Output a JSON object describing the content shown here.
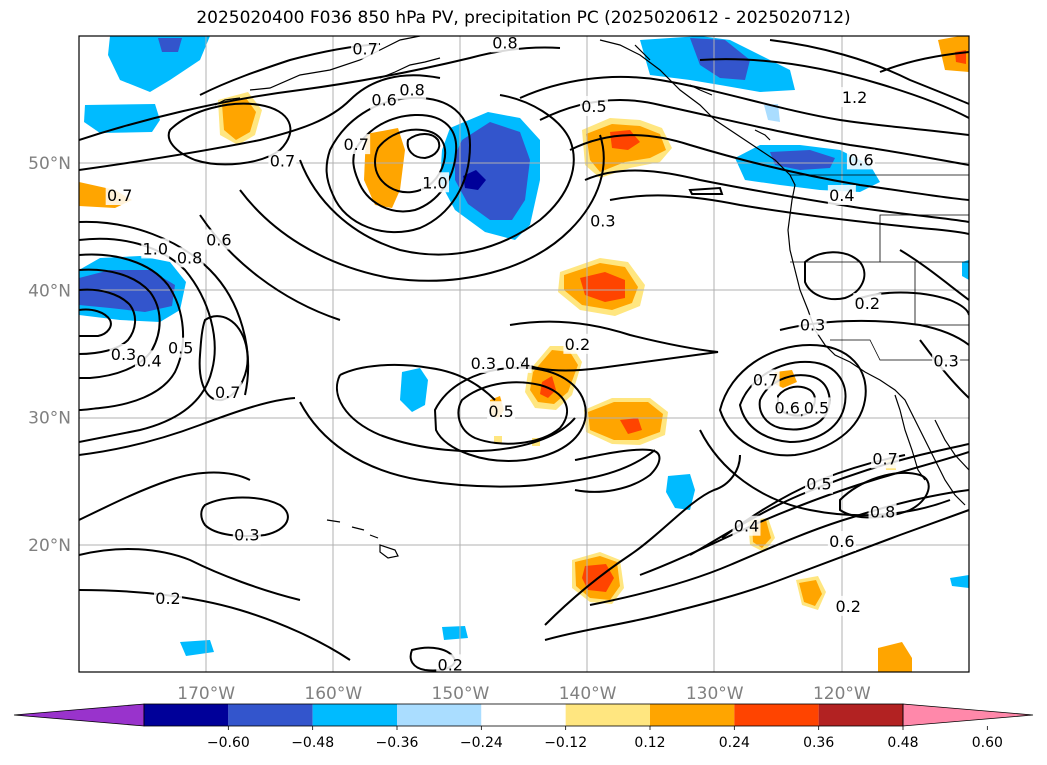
{
  "title": "2025020400 F036 850 hPa PV, precipitation PC (2025020612 - 2025020712)",
  "map": {
    "lon_range": [
      -180,
      -110
    ],
    "lat_range": [
      10,
      60
    ],
    "lon_ticks": [
      {
        "lon": -170,
        "label": "170°W"
      },
      {
        "lon": -160,
        "label": "160°W"
      },
      {
        "lon": -150,
        "label": "150°W"
      },
      {
        "lon": -140,
        "label": "140°W"
      },
      {
        "lon": -130,
        "label": "130°W"
      },
      {
        "lon": -120,
        "label": "120°W"
      }
    ],
    "lat_ticks": [
      {
        "lat": 20,
        "label": "20°N"
      },
      {
        "lat": 30,
        "label": "30°N"
      },
      {
        "lat": 40,
        "label": "40°N"
      },
      {
        "lat": 50,
        "label": "50°N"
      }
    ],
    "grid": true
  },
  "colorbar": {
    "colors": [
      "#9933cc",
      "#000099",
      "#3355cc",
      "#00bbff",
      "#aaddff",
      "#ffffff",
      "#ffe680",
      "#ffa500",
      "#ff4400",
      "#b22222",
      "#ff88aa"
    ],
    "ticks": [
      "−0.60",
      "−0.48",
      "−0.36",
      "−0.24",
      "−0.12",
      "0.12",
      "0.24",
      "0.36",
      "0.48",
      "0.60"
    ]
  },
  "contour_labels": [
    {
      "text": "0.8",
      "lon": -146.5,
      "lat": 59.5
    },
    {
      "text": "0.7",
      "lon": -157.5,
      "lat": 59.0
    },
    {
      "text": "0.6",
      "lon": -156.0,
      "lat": 55.0
    },
    {
      "text": "0.8",
      "lon": -153.8,
      "lat": 55.8
    },
    {
      "text": "0.7",
      "lon": -158.2,
      "lat": 51.5
    },
    {
      "text": "0.7",
      "lon": -164.0,
      "lat": 50.2
    },
    {
      "text": "1.0",
      "lon": -152.0,
      "lat": 48.5
    },
    {
      "text": "0.5",
      "lon": -139.5,
      "lat": 54.5
    },
    {
      "text": "0.3",
      "lon": -138.8,
      "lat": 45.5
    },
    {
      "text": "1.2",
      "lon": -119.0,
      "lat": 55.2
    },
    {
      "text": "0.6",
      "lon": -118.5,
      "lat": 50.3
    },
    {
      "text": "0.4",
      "lon": -120.0,
      "lat": 47.5
    },
    {
      "text": "0.2",
      "lon": -118.0,
      "lat": 39.0
    },
    {
      "text": "0.3",
      "lon": -122.3,
      "lat": 37.3
    },
    {
      "text": "0.3",
      "lon": -111.8,
      "lat": 34.5
    },
    {
      "text": "0.7",
      "lon": -176.8,
      "lat": 47.5
    },
    {
      "text": "0.6",
      "lon": -169.0,
      "lat": 44.0
    },
    {
      "text": "1.0",
      "lon": -174.0,
      "lat": 43.3
    },
    {
      "text": "0.8",
      "lon": -171.3,
      "lat": 42.6
    },
    {
      "text": "0.3",
      "lon": -176.5,
      "lat": 35.0
    },
    {
      "text": "0.4",
      "lon": -174.5,
      "lat": 34.5
    },
    {
      "text": "0.5",
      "lon": -172.0,
      "lat": 35.5
    },
    {
      "text": "0.7",
      "lon": -168.3,
      "lat": 32.0
    },
    {
      "text": "0.3",
      "lon": -148.2,
      "lat": 34.3
    },
    {
      "text": "0.4",
      "lon": -145.5,
      "lat": 34.3
    },
    {
      "text": "0.2",
      "lon": -140.8,
      "lat": 35.8
    },
    {
      "text": "0.5",
      "lon": -146.8,
      "lat": 30.5
    },
    {
      "text": "0.7",
      "lon": -126.0,
      "lat": 33.0
    },
    {
      "text": "0.6",
      "lon": -124.3,
      "lat": 30.8
    },
    {
      "text": "0.5",
      "lon": -122.0,
      "lat": 30.8
    },
    {
      "text": "0.7",
      "lon": -116.6,
      "lat": 26.8
    },
    {
      "text": "0.5",
      "lon": -121.8,
      "lat": 24.8
    },
    {
      "text": "0.8",
      "lon": -116.8,
      "lat": 22.6
    },
    {
      "text": "0.4",
      "lon": -127.5,
      "lat": 21.5
    },
    {
      "text": "0.6",
      "lon": -120.0,
      "lat": 20.3
    },
    {
      "text": "0.2",
      "lon": -119.5,
      "lat": 15.2
    },
    {
      "text": "0.3",
      "lon": -166.8,
      "lat": 20.8
    },
    {
      "text": "0.2",
      "lon": -173.0,
      "lat": 15.8
    },
    {
      "text": "0.2",
      "lon": -150.8,
      "lat": 10.6
    }
  ]
}
